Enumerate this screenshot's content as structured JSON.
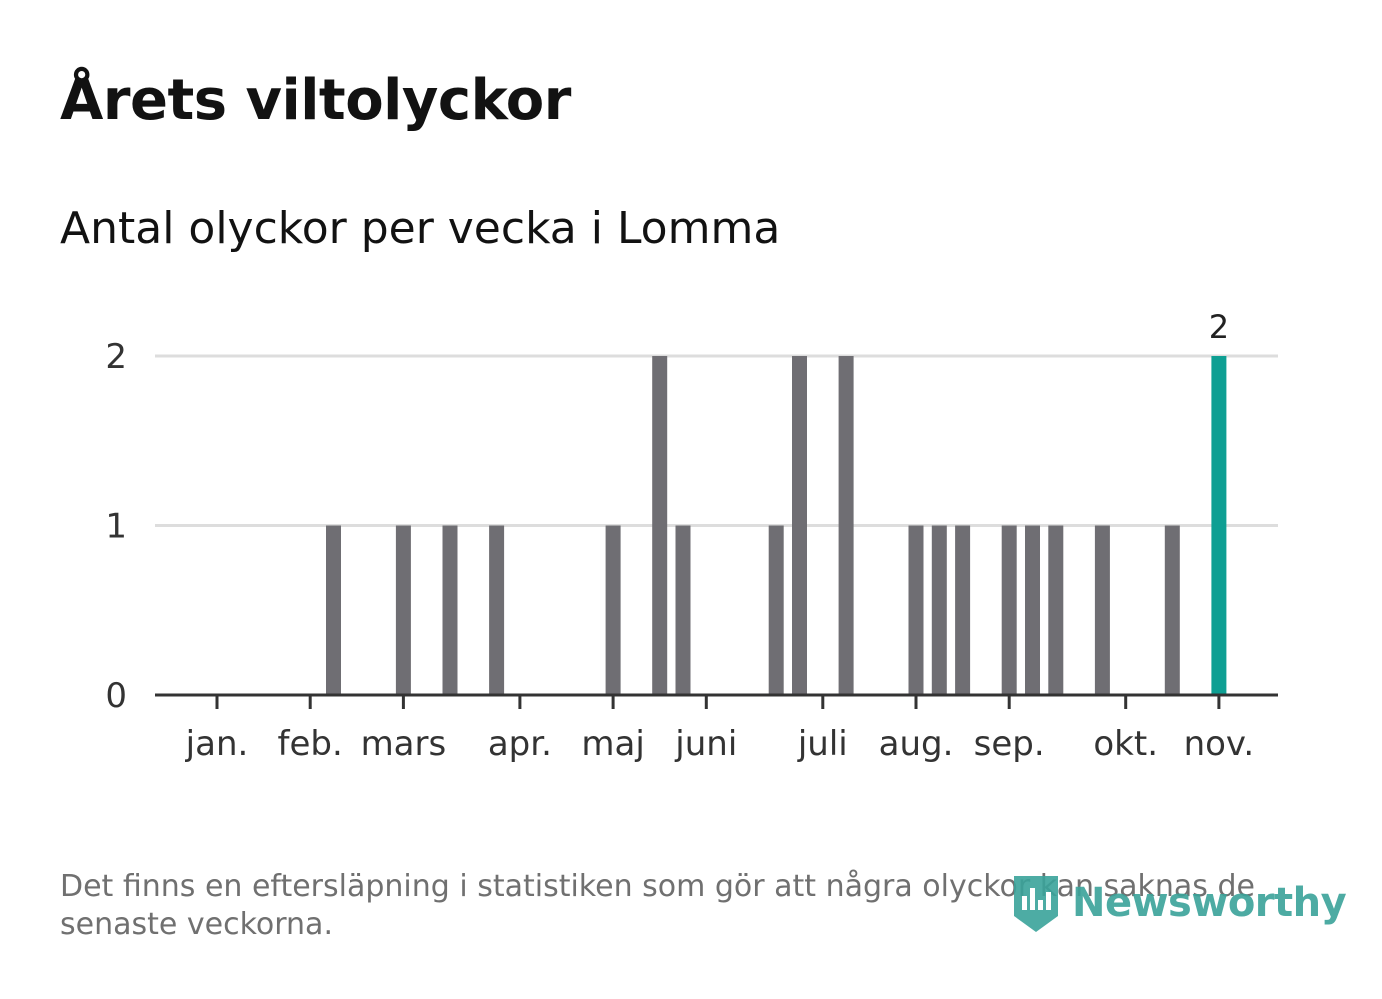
{
  "title": "Årets viltolyckor",
  "subtitle": "Antal olyckor per vecka i Lomma",
  "footnote": "Det finns en eftersläpning i statistiken som gör att några olyckor kan saknas de senaste veckorna.",
  "brand": "Newsworthy",
  "colors": {
    "bar": "#6f6e73",
    "highlight": "#0e9f93",
    "grid": "#dddddd",
    "axis": "#333333",
    "logo": "#3aa39a"
  },
  "chart_data": {
    "type": "bar",
    "title": "Antal olyckor per vecka i Lomma",
    "xlabel": "",
    "ylabel": "",
    "ylim": [
      0,
      2
    ],
    "yticks": [
      "0",
      "1",
      "2"
    ],
    "x_unit": "week",
    "month_ticks": [
      {
        "label": "jan.",
        "week": 1
      },
      {
        "label": "feb.",
        "week": 5
      },
      {
        "label": "mars",
        "week": 9
      },
      {
        "label": "apr.",
        "week": 14
      },
      {
        "label": "maj",
        "week": 18
      },
      {
        "label": "juni",
        "week": 22
      },
      {
        "label": "juli",
        "week": 27
      },
      {
        "label": "aug.",
        "week": 31
      },
      {
        "label": "sep.",
        "week": 35
      },
      {
        "label": "okt.",
        "week": 40
      },
      {
        "label": "nov.",
        "week": 44
      }
    ],
    "weeks": [
      1,
      2,
      3,
      4,
      5,
      6,
      7,
      8,
      9,
      10,
      11,
      12,
      13,
      14,
      15,
      16,
      17,
      18,
      19,
      20,
      21,
      22,
      23,
      24,
      25,
      26,
      27,
      28,
      29,
      30,
      31,
      32,
      33,
      34,
      35,
      36,
      37,
      38,
      39,
      40,
      41,
      42,
      43,
      44
    ],
    "values": [
      0,
      0,
      0,
      0,
      0,
      1,
      0,
      0,
      1,
      0,
      1,
      0,
      1,
      0,
      0,
      0,
      0,
      1,
      0,
      2,
      1,
      0,
      0,
      0,
      1,
      2,
      0,
      2,
      0,
      0,
      1,
      1,
      1,
      0,
      1,
      1,
      1,
      0,
      1,
      0,
      0,
      1,
      0,
      2
    ],
    "highlight_week": 44,
    "highlight_label": "2"
  }
}
